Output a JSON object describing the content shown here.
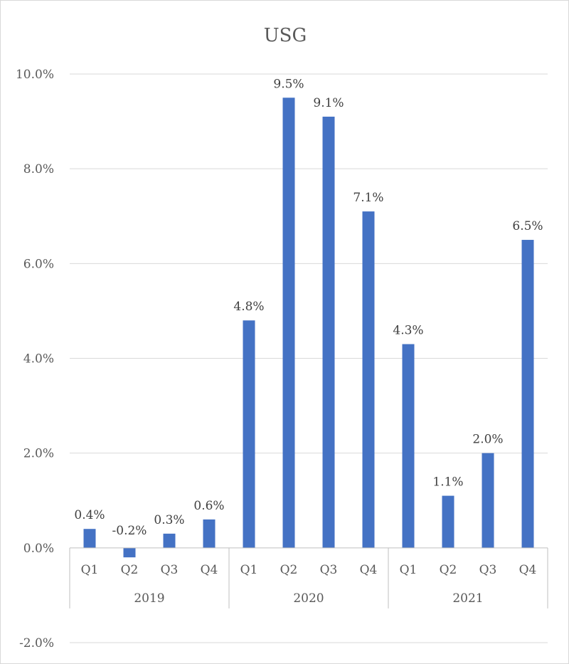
{
  "chart_data": {
    "type": "bar",
    "title": "USG",
    "xlabel": "",
    "ylabel": "",
    "ylim": [
      -2.0,
      10.0
    ],
    "y_ticks": [
      10.0,
      8.0,
      6.0,
      4.0,
      2.0,
      0.0,
      -2.0
    ],
    "y_tick_labels": [
      "10.0%",
      "8.0%",
      "6.0%",
      "4.0%",
      "2.0%",
      "0.0%",
      "-2.0%"
    ],
    "grid": true,
    "legend": "none",
    "bar_color": "#4472C4",
    "groups": [
      {
        "label": "2019",
        "categories": [
          "Q1",
          "Q2",
          "Q3",
          "Q4"
        ],
        "values": [
          0.4,
          -0.2,
          0.3,
          0.6
        ],
        "labels": [
          "0.4%",
          "-0.2%",
          "0.3%",
          "0.6%"
        ]
      },
      {
        "label": "2020",
        "categories": [
          "Q1",
          "Q2",
          "Q3",
          "Q4"
        ],
        "values": [
          4.8,
          9.5,
          9.1,
          7.1
        ],
        "labels": [
          "4.8%",
          "9.5%",
          "9.1%",
          "7.1%"
        ]
      },
      {
        "label": "2021",
        "categories": [
          "Q1",
          "Q2",
          "Q3",
          "Q4"
        ],
        "values": [
          4.3,
          1.1,
          2.0,
          6.5
        ],
        "labels": [
          "4.3%",
          "1.1%",
          "2.0%",
          "6.5%"
        ]
      }
    ]
  }
}
